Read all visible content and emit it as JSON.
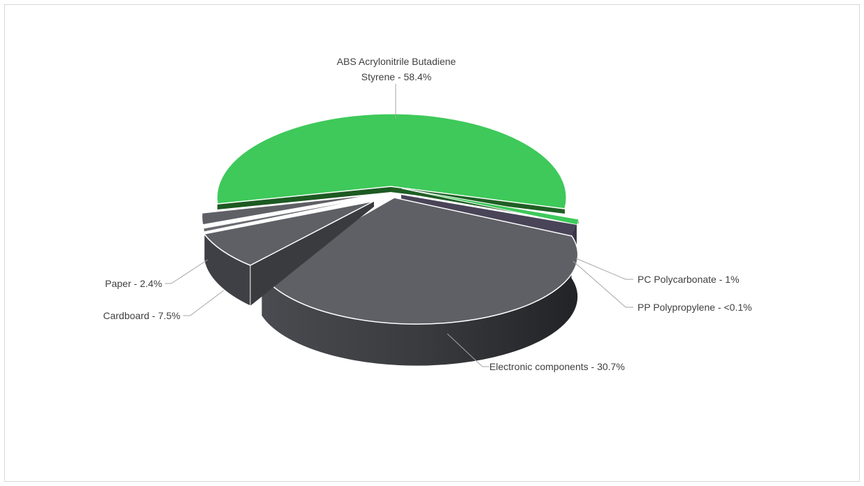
{
  "chart_data": {
    "type": "pie",
    "title": "",
    "style": "3d-exploded",
    "slices": [
      {
        "label": "ABS Acrylonitrile Butadiene Styrene",
        "value": 58.4,
        "display": "58.4%",
        "color": "#3ec95a"
      },
      {
        "label": "PC Polycarbonate",
        "value": 1.0,
        "display": "1%",
        "color": "#3ec95a"
      },
      {
        "label": "PP Polypropylene",
        "value": 0.05,
        "display": "<0.1%",
        "color": "#4a4458"
      },
      {
        "label": "Electronic components",
        "value": 30.7,
        "display": "30.7%",
        "color": "#5f6066"
      },
      {
        "label": "Cardboard",
        "value": 7.5,
        "display": "7.5%",
        "color": "#5f6066"
      },
      {
        "label": "Paper",
        "value": 2.4,
        "display": "2.4%",
        "color": "#5f6066"
      }
    ],
    "labels": {
      "abs_line1": "ABS Acrylonitrile Butadiene",
      "abs_line2": "Styrene - 58.4%",
      "pc": "PC Polycarbonate - 1%",
      "pp": "PP Polypropylene - <0.1%",
      "electronic": "Electronic components - 30.7%",
      "cardboard": "Cardboard - 7.5%",
      "paper": "Paper - 2.4%"
    }
  }
}
